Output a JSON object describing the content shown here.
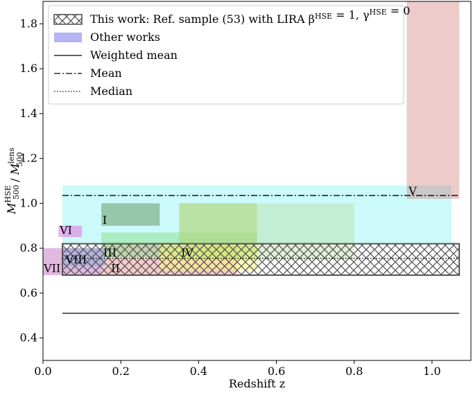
{
  "chart_data": {
    "type": "area",
    "xlabel": "Redshift z",
    "ylabel": "M500^HSE / M500^lens",
    "xlim": [
      0.0,
      1.1
    ],
    "ylim": [
      0.3,
      1.9
    ],
    "xticks": [
      0.0,
      0.2,
      0.4,
      0.6,
      0.8,
      1.0
    ],
    "xtick_labels": [
      "0.0",
      "0.2",
      "0.4",
      "0.6",
      "0.8",
      "1.0"
    ],
    "yticks": [
      0.4,
      0.6,
      0.8,
      1.0,
      1.2,
      1.4,
      1.6,
      1.8
    ],
    "ytick_labels": [
      "0.4",
      "0.6",
      "0.8",
      "1.0",
      "1.2",
      "1.4",
      "1.6",
      "1.8"
    ],
    "grid": false,
    "legend_position": "top-left",
    "legend": [
      {
        "label": "This work: Ref. sample (53) with LIRA β^HSE = 1, γ^HSE = 0",
        "kind": "hatched-box"
      },
      {
        "label": "Other works",
        "kind": "filled-box",
        "color": "#b3b3f5"
      },
      {
        "label": "Weighted mean",
        "kind": "solid-line"
      },
      {
        "label": "Mean",
        "kind": "dashdot-line"
      },
      {
        "label": "Median",
        "kind": "dotted-line"
      }
    ],
    "this_work": {
      "z_range": [
        0.05,
        1.07
      ],
      "ratio_range": [
        0.68,
        0.82
      ]
    },
    "other_works": [
      {
        "label": "",
        "z_range": [
          0.05,
          1.05
        ],
        "ratio_range": [
          0.82,
          1.08
        ],
        "color": "#55eef0",
        "opacity": 0.3
      },
      {
        "label": "I",
        "z_range": [
          0.15,
          0.3
        ],
        "ratio_range": [
          0.9,
          1.0
        ],
        "color": "#6a9a6a",
        "opacity": 0.55
      },
      {
        "label": "II",
        "z_range": [
          0.15,
          0.5
        ],
        "ratio_range": [
          0.68,
          0.82
        ],
        "color": "#f0a8a8",
        "opacity": 0.6
      },
      {
        "label": "III",
        "z_range": [
          0.15,
          0.55
        ],
        "ratio_range": [
          0.76,
          0.87
        ],
        "color": "#88e088",
        "opacity": 0.5
      },
      {
        "label": "IV",
        "z_range": [
          0.35,
          0.55
        ],
        "ratio_range": [
          0.75,
          1.0
        ],
        "color": "#a6d26a",
        "opacity": 0.55
      },
      {
        "label": "",
        "z_range": [
          0.35,
          0.8
        ],
        "ratio_range": [
          0.75,
          1.0
        ],
        "color": "#b8dc98",
        "opacity": 0.4
      },
      {
        "label": "",
        "z_range": [
          0.3,
          0.55
        ],
        "ratio_range": [
          0.7,
          0.82
        ],
        "color": "#ffff70",
        "opacity": 0.45
      },
      {
        "label": "V",
        "z_range": [
          0.935,
          1.07
        ],
        "ratio_range": [
          1.02,
          1.9
        ],
        "color": "#cc6a6a",
        "opacity": 0.35
      },
      {
        "label": "VI",
        "z_range": [
          0.04,
          0.1
        ],
        "ratio_range": [
          0.85,
          0.9
        ],
        "color": "#e27be2",
        "opacity": 0.6
      },
      {
        "label": "VII",
        "z_range": [
          0.0,
          0.15
        ],
        "ratio_range": [
          0.68,
          0.8
        ],
        "color": "#cc88cc",
        "opacity": 0.6
      },
      {
        "label": "VIII",
        "z_range": [
          0.05,
          0.16
        ],
        "ratio_range": [
          0.72,
          0.8
        ],
        "color": "#88aadd",
        "opacity": 0.5
      }
    ],
    "lines": {
      "weighted_mean": {
        "z_range": [
          0.05,
          1.07
        ],
        "value": 0.51
      },
      "mean": {
        "z_range": [
          0.05,
          1.07
        ],
        "value": 1.035
      },
      "median": {
        "z_range": [
          0.05,
          1.07
        ],
        "value": 0.755
      }
    }
  }
}
